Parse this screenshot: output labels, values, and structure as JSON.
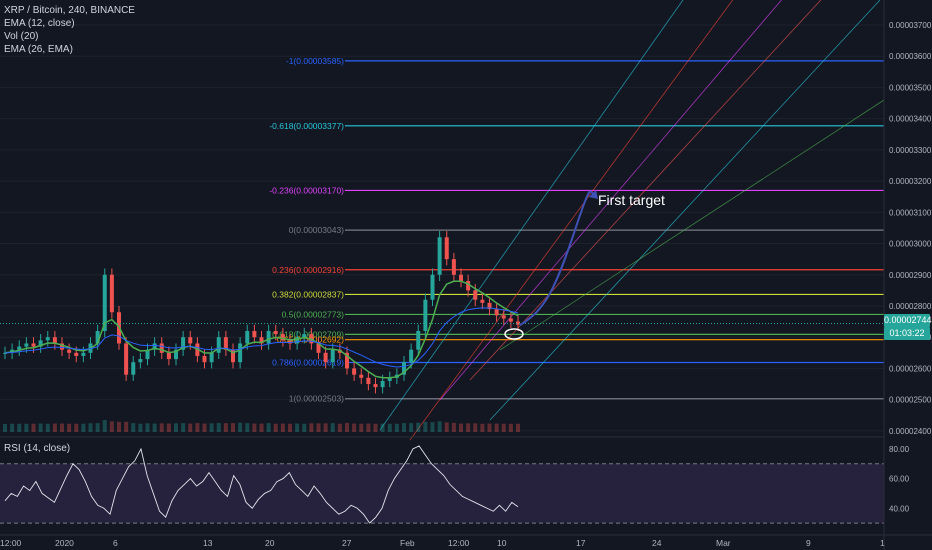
{
  "header": {
    "symbol_title": "XRP / Bitcoin, 240, BINANCE",
    "ema12": "EMA (12, close)",
    "vol": "Vol (20)",
    "ema26": "EMA (26, EMA)",
    "rsi_title": "RSI (14, close)"
  },
  "price_tags": {
    "last_price": "0.00002744",
    "countdown": "01:03:22"
  },
  "annotation": "First target",
  "colors": {
    "background": "#131722",
    "up": "#26a69a",
    "down": "#ef5350",
    "ema12": "#4caf50",
    "ema26": "#2962ff",
    "fib_1": "#787b86",
    "fib_786": "#2962ff",
    "fib_65": "#ff9800",
    "fib_618": "#4caf50",
    "fib_05": "#4caf50",
    "fib_382": "#cddc39",
    "fib_236": "#f44336",
    "fib_0": "#787b86",
    "fib_m236": "#e040fb",
    "fib_m618": "#26c6da",
    "fib_m1": "#2962ff",
    "rsi_line": "#e0e3eb",
    "rsi_band": "#7e57c2",
    "arrow": "#3f51b5",
    "last_price": "#26a69a"
  },
  "chart_data": [
    {
      "type": "candlestick",
      "title": "XRP / Bitcoin, 240, BINANCE",
      "ylim": [
        2.39e-05,
        3.78e-05
      ],
      "y_ticks": [
        "0.00003700",
        "0.00003600",
        "0.00003500",
        "0.00003400",
        "0.00003300",
        "0.00003200",
        "0.00003100",
        "0.00003000",
        "0.00002900",
        "0.00002800",
        "0.00002700",
        "0.00002600",
        "0.00002500",
        "0.00002400"
      ],
      "x_ticks": [
        "12:00",
        "2020",
        "6",
        "13",
        "20",
        "27",
        "Feb",
        "12:00",
        "10",
        "17",
        "24",
        "Mar",
        "9",
        "1"
      ],
      "fib_levels": [
        {
          "label": "-1(0.00003585)",
          "value": 3.585e-05
        },
        {
          "label": "-0.618(0.00003377)",
          "value": 3.377e-05
        },
        {
          "label": "-0.236(0.00003170)",
          "value": 3.17e-05
        },
        {
          "label": "0(0.00003043)",
          "value": 3.043e-05
        },
        {
          "label": "0.236(0.00002916)",
          "value": 2.916e-05
        },
        {
          "label": "0.382(0.00002837)",
          "value": 2.837e-05
        },
        {
          "label": "0.5(0.00002773)",
          "value": 2.773e-05
        },
        {
          "label": "0.618(0.00002709)",
          "value": 2.709e-05
        },
        {
          "label": "0.65(0.00002692)",
          "value": 2.692e-05
        },
        {
          "label": "0.786(0.00002619)",
          "value": 2.619e-05
        },
        {
          "label": "1(0.00002503)",
          "value": 2.503e-05
        }
      ],
      "last_price": 2.744e-05,
      "price_path": [
        2.65e-05,
        2.66e-05,
        2.67e-05,
        2.68e-05,
        2.67e-05,
        2.69e-05,
        2.7e-05,
        2.68e-05,
        2.66e-05,
        2.65e-05,
        2.64e-05,
        2.65e-05,
        2.68e-05,
        2.72e-05,
        2.9e-05,
        2.78e-05,
        2.68e-05,
        2.58e-05,
        2.62e-05,
        2.63e-05,
        2.66e-05,
        2.68e-05,
        2.65e-05,
        2.63e-05,
        2.66e-05,
        2.7e-05,
        2.68e-05,
        2.64e-05,
        2.62e-05,
        2.65e-05,
        2.7e-05,
        2.66e-05,
        2.62e-05,
        2.68e-05,
        2.72e-05,
        2.7e-05,
        2.68e-05,
        2.72e-05,
        2.71e-05,
        2.69e-05,
        2.68e-05,
        2.7e-05,
        2.71e-05,
        2.68e-05,
        2.65e-05,
        2.62e-05,
        2.66e-05,
        2.65e-05,
        2.6e-05,
        2.58e-05,
        2.57e-05,
        2.55e-05,
        2.54e-05,
        2.56e-05,
        2.57e-05,
        2.58e-05,
        2.62e-05,
        2.66e-05,
        2.72e-05,
        2.82e-05,
        2.9e-05,
        3.02e-05,
        2.95e-05,
        2.9e-05,
        2.88e-05,
        2.85e-05,
        2.82e-05,
        2.81e-05,
        2.79e-05,
        2.77e-05,
        2.76e-05,
        2.75e-05,
        2.74e-05
      ]
    },
    {
      "type": "line",
      "title": "RSI (14, close)",
      "ylim": [
        24,
        86
      ],
      "y_ticks": [
        "80.00",
        "60.00",
        "40.00"
      ],
      "bands": [
        30,
        70
      ],
      "values": [
        45,
        50,
        48,
        55,
        52,
        58,
        50,
        47,
        44,
        53,
        62,
        70,
        66,
        58,
        48,
        42,
        40,
        36,
        52,
        60,
        68,
        72,
        80,
        62,
        50,
        38,
        34,
        45,
        52,
        56,
        60,
        55,
        58,
        64,
        58,
        52,
        48,
        62,
        56,
        44,
        40,
        46,
        50,
        52,
        58,
        60,
        64,
        56,
        52,
        48,
        55,
        50,
        44,
        40,
        36,
        38,
        42,
        40,
        36,
        30,
        34,
        40,
        52,
        60,
        66,
        72,
        80,
        82,
        76,
        70,
        66,
        62,
        56,
        52,
        48,
        46,
        44,
        42,
        40,
        38,
        42,
        38,
        44,
        41
      ]
    }
  ]
}
